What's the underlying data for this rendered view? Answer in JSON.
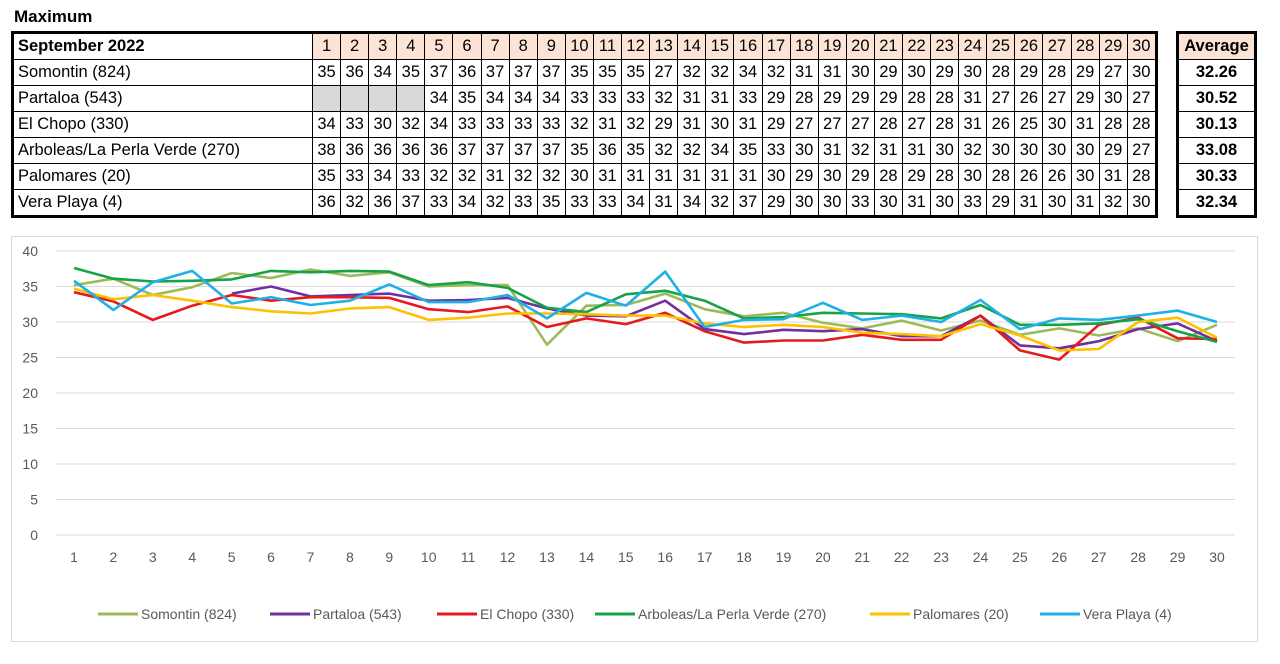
{
  "title": "Maximum",
  "period": "September 2022",
  "average_label": "Average",
  "days": [
    "1",
    "2",
    "3",
    "4",
    "5",
    "6",
    "7",
    "8",
    "9",
    "10",
    "11",
    "12",
    "13",
    "14",
    "15",
    "16",
    "17",
    "18",
    "19",
    "20",
    "21",
    "22",
    "23",
    "24",
    "25",
    "26",
    "27",
    "28",
    "29",
    "30"
  ],
  "stations": [
    {
      "name": "Somontin (824)",
      "color": "#9bbb59",
      "average": "32.26",
      "values": [
        35,
        36,
        34,
        35,
        37,
        36,
        37,
        37,
        37,
        35,
        35,
        35,
        27,
        32,
        32,
        34,
        32,
        31,
        31,
        30,
        29,
        30,
        29,
        30,
        28,
        29,
        28,
        29,
        27,
        30
      ]
    },
    {
      "name": "Partaloa (543)",
      "color": "#7030a0",
      "average": "30.52",
      "values": [
        null,
        null,
        null,
        null,
        34,
        35,
        34,
        34,
        34,
        33,
        33,
        33,
        32,
        31,
        31,
        33,
        29,
        28,
        29,
        29,
        29,
        28,
        28,
        31,
        27,
        26,
        27,
        29,
        30,
        27
      ]
    },
    {
      "name": "El Chopo (330)",
      "color": "#e41a1c",
      "average": "30.13",
      "values": [
        34,
        33,
        30,
        32,
        34,
        33,
        33,
        33,
        33,
        32,
        31,
        32,
        29,
        31,
        30,
        31,
        29,
        27,
        27,
        27,
        28,
        27,
        28,
        31,
        26,
        25,
        30,
        31,
        28,
        28
      ]
    },
    {
      "name": "Arboleas/La Perla Verde (270)",
      "color": "#16a348",
      "average": "33.08",
      "values": [
        38,
        36,
        36,
        36,
        36,
        37,
        37,
        37,
        37,
        35,
        36,
        35,
        32,
        32,
        34,
        35,
        33,
        30,
        31,
        32,
        31,
        31,
        30,
        32,
        30,
        30,
        30,
        30,
        29,
        27
      ]
    },
    {
      "name": "Palomares (20)",
      "color": "#ffc000",
      "average": "30.33",
      "values": [
        35,
        33,
        34,
        33,
        32,
        32,
        31,
        32,
        32,
        30,
        31,
        31,
        31,
        31,
        31,
        31,
        30,
        29,
        30,
        29,
        28,
        29,
        28,
        30,
        28,
        26,
        26,
        30,
        31,
        28
      ]
    },
    {
      "name": "Vera Playa (4)",
      "color": "#1fb0e6",
      "average": "32.34",
      "values": [
        36,
        32,
        36,
        37,
        33,
        34,
        32,
        33,
        35,
        33,
        33,
        34,
        31,
        34,
        32,
        37,
        29,
        30,
        30,
        33,
        30,
        31,
        30,
        33,
        29,
        31,
        30,
        31,
        32,
        30
      ]
    }
  ],
  "chart_data": {
    "type": "line",
    "x": [
      1,
      2,
      3,
      4,
      5,
      6,
      7,
      8,
      9,
      10,
      11,
      12,
      13,
      14,
      15,
      16,
      17,
      18,
      19,
      20,
      21,
      22,
      23,
      24,
      25,
      26,
      27,
      28,
      29,
      30
    ],
    "ylim": [
      0,
      40
    ],
    "yticks": [
      0,
      5,
      10,
      15,
      20,
      25,
      30,
      35,
      40
    ],
    "grid": true,
    "legend": "bottom",
    "series": [
      {
        "name": "Somontin (824)",
        "color": "#9bbb59",
        "values": [
          35.2,
          36.1,
          33.8,
          34.9,
          36.9,
          36.2,
          37.4,
          36.5,
          37.0,
          35.0,
          35.2,
          35.2,
          26.8,
          32.3,
          32.4,
          34.0,
          31.8,
          30.8,
          31.3,
          29.9,
          29.1,
          30.2,
          28.8,
          30.2,
          28.2,
          29.1,
          28.1,
          29.1,
          27.3,
          29.6
        ]
      },
      {
        "name": "Partaloa (543)",
        "color": "#7030a0",
        "values": [
          null,
          null,
          null,
          null,
          34.0,
          35.0,
          33.6,
          33.8,
          34.0,
          33.0,
          33.1,
          33.4,
          31.9,
          30.9,
          30.8,
          33.0,
          29.0,
          28.3,
          28.9,
          28.7,
          29.0,
          28.0,
          28.0,
          30.9,
          26.7,
          26.3,
          27.3,
          29.0,
          29.8,
          27.3
        ]
      },
      {
        "name": "El Chopo (330)",
        "color": "#e41a1c",
        "values": [
          34.2,
          32.9,
          30.3,
          32.3,
          33.8,
          33.0,
          33.5,
          33.5,
          33.4,
          31.8,
          31.4,
          32.2,
          29.3,
          30.5,
          29.7,
          31.3,
          28.7,
          27.1,
          27.4,
          27.4,
          28.2,
          27.5,
          27.5,
          30.9,
          26.0,
          24.7,
          29.6,
          30.6,
          27.7,
          27.6
        ]
      },
      {
        "name": "Arboleas/La Perla Verde (270)",
        "color": "#16a348",
        "values": [
          37.6,
          36.1,
          35.7,
          35.8,
          36.0,
          37.2,
          37.0,
          37.2,
          37.1,
          35.2,
          35.6,
          34.8,
          32.0,
          31.4,
          33.9,
          34.4,
          33.0,
          30.5,
          30.7,
          31.3,
          31.2,
          31.1,
          30.5,
          32.4,
          29.6,
          29.6,
          29.8,
          30.4,
          28.7,
          27.2
        ]
      },
      {
        "name": "Palomares (20)",
        "color": "#ffc000",
        "values": [
          34.7,
          33.2,
          33.8,
          33.0,
          32.1,
          31.5,
          31.2,
          31.9,
          32.1,
          30.3,
          30.6,
          31.2,
          31.2,
          31.1,
          30.9,
          30.9,
          29.8,
          29.3,
          29.6,
          29.3,
          28.5,
          28.3,
          28.0,
          29.7,
          28.1,
          26.0,
          26.2,
          30.0,
          30.6,
          27.8
        ]
      },
      {
        "name": "Vera Playa (4)",
        "color": "#1fb0e6",
        "values": [
          35.8,
          31.7,
          35.6,
          37.2,
          32.6,
          33.5,
          32.4,
          33.0,
          35.3,
          32.8,
          32.8,
          33.8,
          30.5,
          34.1,
          32.3,
          37.1,
          29.3,
          30.3,
          30.4,
          32.7,
          30.3,
          30.9,
          30.0,
          33.1,
          29.0,
          30.5,
          30.3,
          30.9,
          31.6,
          30.0
        ]
      }
    ]
  }
}
